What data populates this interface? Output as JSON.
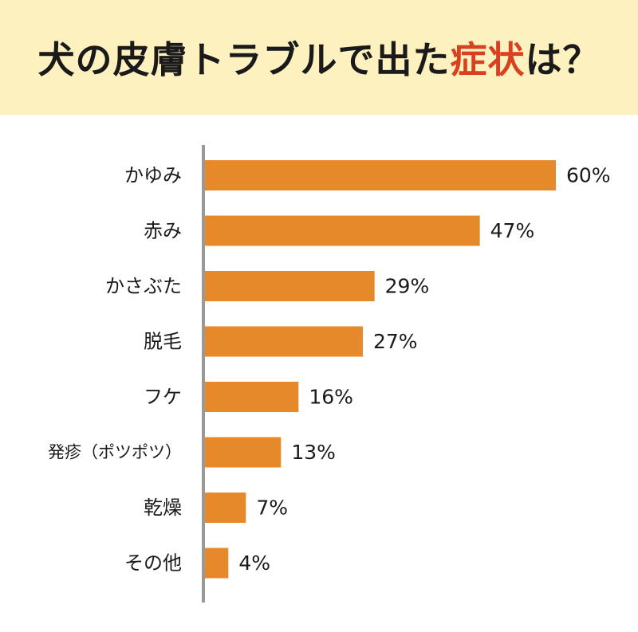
{
  "title": {
    "prefix": "犬の皮膚トラブルで出た",
    "highlight": "症状",
    "suffix": "は？"
  },
  "colors": {
    "header_bg": "#fdf1bf",
    "bar": "#e5892a",
    "axis": "#999999",
    "highlight": "#d8401f"
  },
  "chart_data": {
    "type": "bar",
    "orientation": "horizontal",
    "categories": [
      "かゆみ",
      "赤み",
      "かさぶた",
      "脱毛",
      "フケ",
      "発疹（ポツポツ）",
      "乾燥",
      "その他"
    ],
    "values": [
      60,
      47,
      29,
      27,
      16,
      13,
      7,
      4
    ],
    "value_labels": [
      "60%",
      "47%",
      "29%",
      "27%",
      "16%",
      "13%",
      "7%",
      "4%"
    ],
    "unit": "%",
    "xlim": [
      0,
      60
    ],
    "grid": false,
    "legend": "none"
  }
}
